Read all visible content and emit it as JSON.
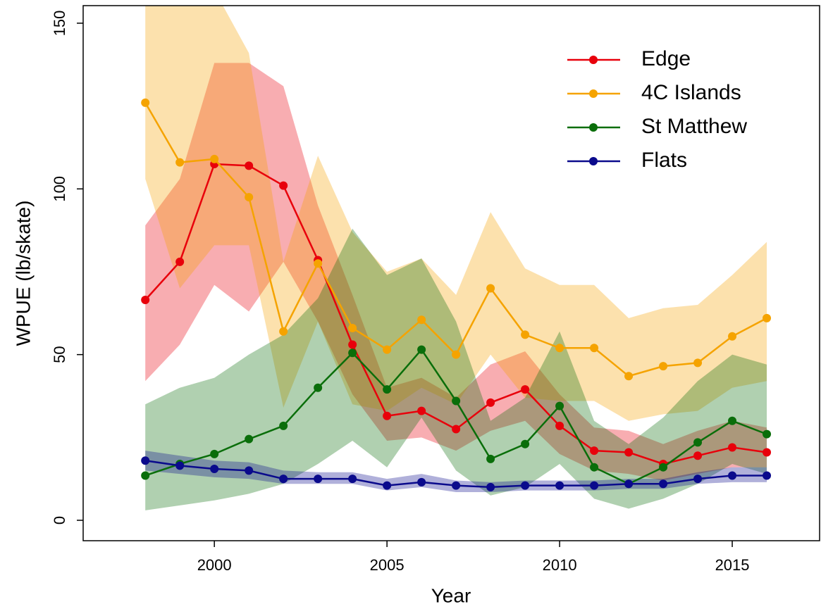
{
  "chart_data": {
    "type": "line_band",
    "x_label": "Year",
    "y_label": "WPUE (lb/skate)",
    "x": [
      1998,
      1999,
      2000,
      2001,
      2002,
      2003,
      2004,
      2005,
      2006,
      2007,
      2008,
      2009,
      2010,
      2011,
      2012,
      2013,
      2014,
      2015,
      2016
    ],
    "xlim": [
      1996.2,
      2017.53
    ],
    "xticks": [
      2000,
      2005,
      2010,
      2015
    ],
    "ylim": [
      -6.16,
      155.3
    ],
    "yticks": [
      0,
      50,
      100,
      150
    ],
    "legend": "top-right",
    "series": [
      {
        "name": "Edge",
        "color": "#e8000b",
        "values": [
          66.5,
          78,
          107.5,
          107,
          101,
          78.5,
          53,
          31.5,
          33,
          27.5,
          35.5,
          39.5,
          28.5,
          21,
          20.5,
          17,
          19.5,
          22,
          20.5
        ],
        "lower": [
          42,
          53,
          71,
          63,
          78,
          60,
          38,
          24,
          25,
          21,
          27,
          30,
          20,
          15,
          14,
          12,
          14,
          16,
          16
        ],
        "upper": [
          89,
          103,
          138,
          138,
          131,
          95,
          68,
          40,
          43,
          37,
          47,
          51,
          38,
          28,
          27,
          23,
          27,
          30,
          28
        ]
      },
      {
        "name": "4C Islands",
        "color": "#f5a300",
        "values": [
          126,
          108,
          109,
          97.5,
          57,
          77.5,
          58,
          51.5,
          60.5,
          50,
          70,
          56,
          52,
          52,
          43.5,
          46.5,
          47.5,
          55.5,
          61
        ],
        "lower": [
          103,
          70,
          83,
          83,
          34,
          60,
          35,
          33,
          40,
          35,
          50,
          37,
          36,
          36,
          30,
          32,
          33,
          40,
          42
        ],
        "upper": [
          162,
          162,
          160,
          141,
          78,
          110,
          87,
          75,
          79,
          68,
          93,
          76,
          71,
          71,
          61,
          64,
          65,
          74,
          84
        ]
      },
      {
        "name": "St Matthew",
        "color": "#0a6e0a",
        "values": [
          13.5,
          17,
          20,
          24.5,
          28.5,
          40,
          50.5,
          39.5,
          51.5,
          36,
          18.5,
          23,
          34.5,
          16,
          11,
          16,
          23.5,
          30,
          26
        ],
        "lower": [
          3,
          4.5,
          6,
          8,
          11,
          17,
          24,
          16,
          31,
          15,
          7.5,
          10,
          17,
          6.5,
          3.5,
          6.5,
          11,
          17,
          14
        ],
        "upper": [
          35,
          40,
          43,
          50,
          56,
          67,
          88,
          74,
          79,
          60,
          30,
          37,
          57,
          30,
          23,
          31,
          42,
          50,
          47
        ]
      },
      {
        "name": "Flats",
        "color": "#0a0a8c",
        "values": [
          18,
          16.5,
          15.5,
          15,
          12.5,
          12.5,
          12.5,
          10.5,
          11.5,
          10.5,
          10,
          10.5,
          10.5,
          10.5,
          11,
          11,
          12.5,
          13.5,
          13.5
        ],
        "lower": [
          15,
          14,
          13,
          12.5,
          11,
          11,
          11,
          9,
          10,
          8.5,
          8.5,
          9,
          9,
          9,
          9.5,
          9.5,
          11,
          11.5,
          11.5
        ],
        "upper": [
          21,
          19.5,
          18,
          17.5,
          15,
          14.5,
          14.5,
          12.5,
          14,
          12,
          11.5,
          12,
          12,
          12,
          12.5,
          12.5,
          14.5,
          16,
          16
        ]
      }
    ]
  }
}
